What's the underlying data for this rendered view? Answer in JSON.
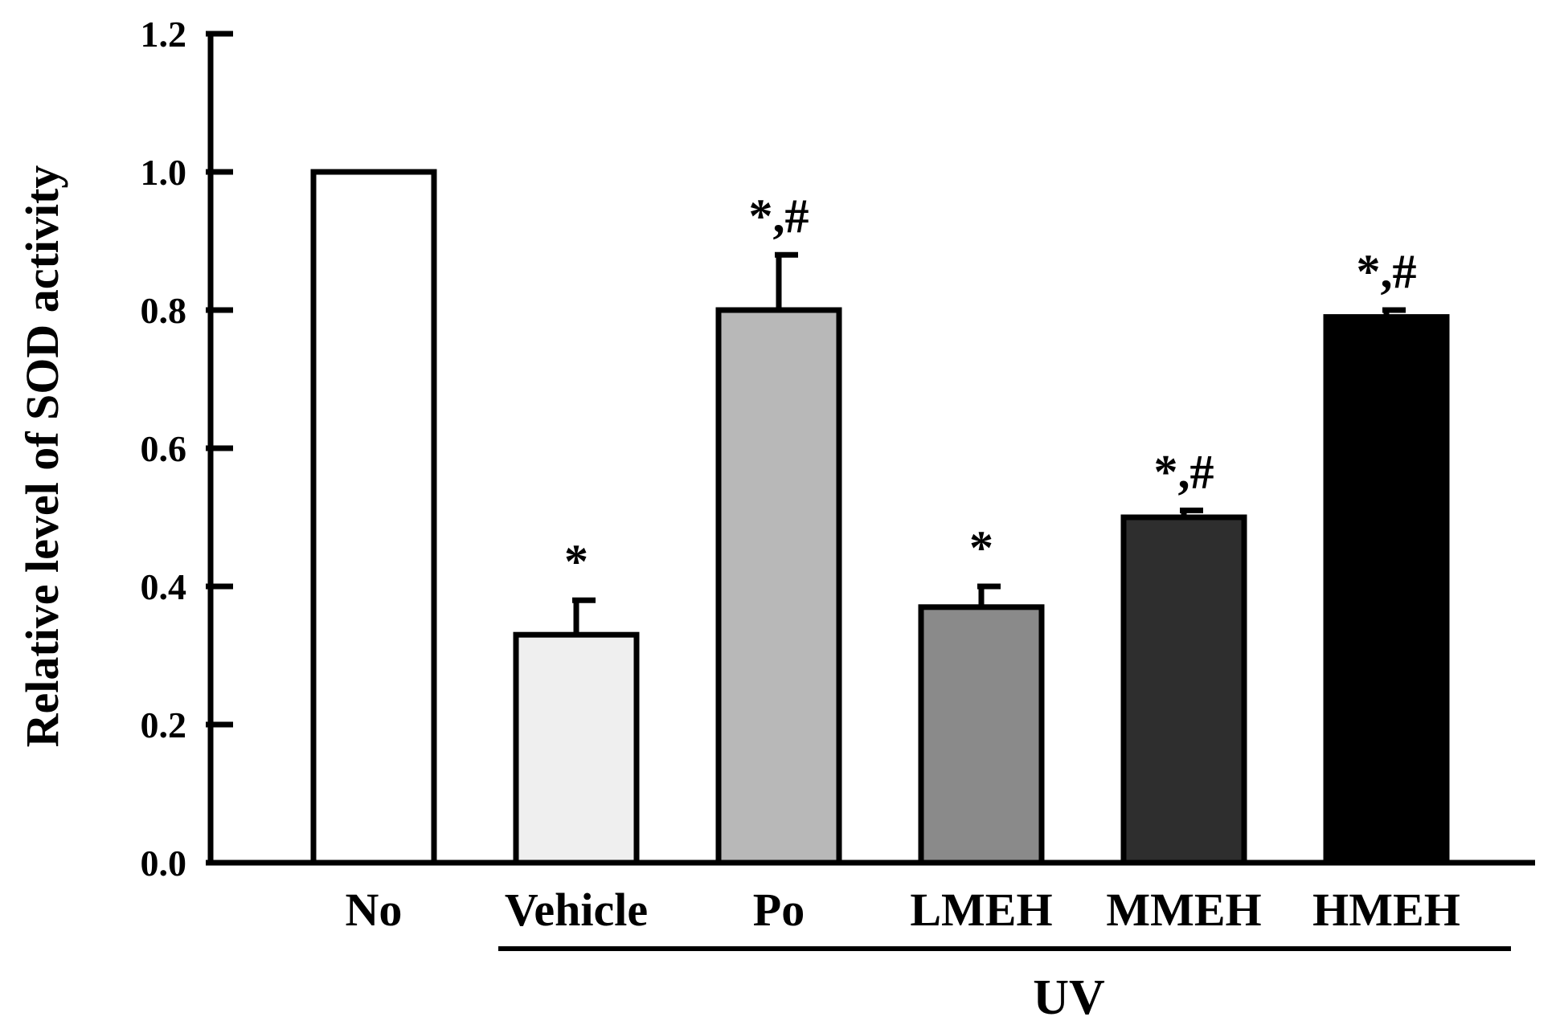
{
  "chart_data": {
    "type": "bar",
    "ylabel": "Relative level of SOD activity",
    "ylim": [
      0,
      1.2
    ],
    "yticks": [
      "0.0",
      "0.2",
      "0.4",
      "0.6",
      "0.8",
      "1.0",
      "1.2"
    ],
    "ytick_values": [
      0,
      0.2,
      0.4,
      0.6,
      0.8,
      1.0,
      1.2
    ],
    "categories": [
      "No",
      "Vehicle",
      "Po",
      "LMEH",
      "MMEH",
      "HMEH"
    ],
    "values": [
      1.0,
      0.33,
      0.8,
      0.37,
      0.5,
      0.79
    ],
    "errors": [
      0,
      0.05,
      0.08,
      0.03,
      0.01,
      0.01
    ],
    "fill_colors": [
      "#ffffff",
      "#efefef",
      "#b8b8b8",
      "#8a8a8a",
      "#2e2e2e",
      "#000000"
    ],
    "annotations": [
      "",
      "*",
      "*,#",
      "*",
      "*,#",
      "*,#"
    ],
    "group_label": "UV",
    "group_categories": [
      "Vehicle",
      "Po",
      "LMEH",
      "MMEH",
      "HMEH"
    ],
    "grid": false,
    "legend": "none"
  }
}
